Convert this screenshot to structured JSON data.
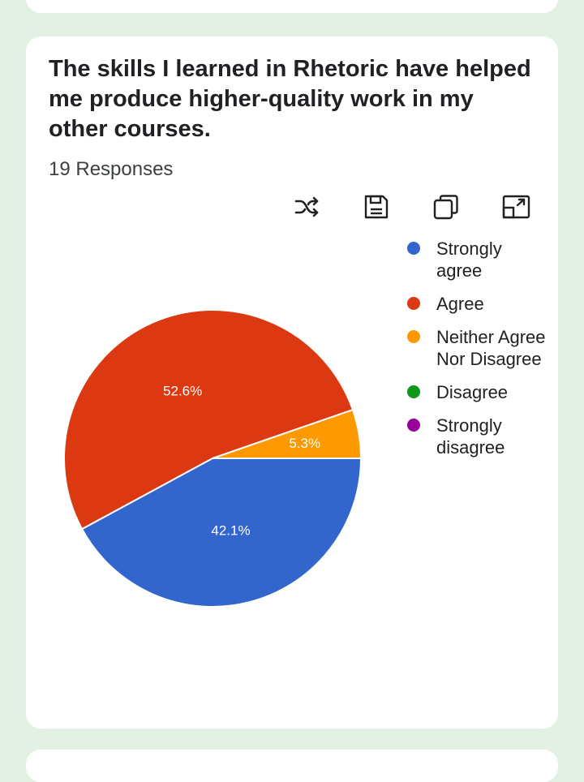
{
  "question": "The skills I learned in Rhetoric have helped me produce higher-quality work in my other courses.",
  "responses_text": "19 Responses",
  "toolbar": {
    "icons": [
      "shuffle-icon",
      "save-icon",
      "copy-icon",
      "expand-icon"
    ]
  },
  "colors": {
    "strongly_agree": "#3366cc",
    "agree": "#dc3912",
    "neither": "#ff9900",
    "disagree": "#109618",
    "strongly_disagree": "#990099"
  },
  "chart_data": {
    "type": "pie",
    "title": "",
    "categories": [
      "Strongly agree",
      "Agree",
      "Neither Agree Nor Disagree",
      "Disagree",
      "Strongly disagree"
    ],
    "values": [
      42.1,
      52.6,
      5.3,
      0,
      0
    ],
    "value_labels": [
      "42.1%",
      "52.6%",
      "5.3%",
      "",
      ""
    ],
    "colors": [
      "#3366cc",
      "#dc3912",
      "#ff9900",
      "#109618",
      "#990099"
    ],
    "legend_position": "right"
  }
}
